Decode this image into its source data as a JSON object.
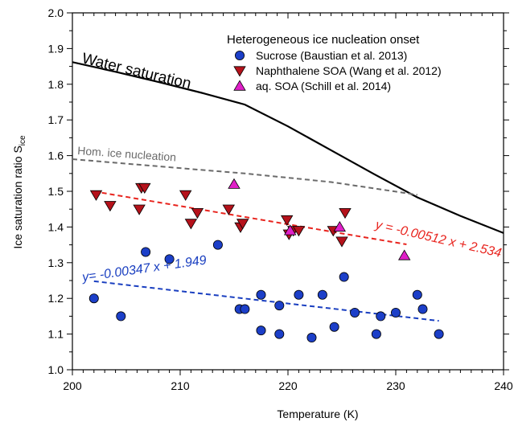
{
  "chart_data": {
    "type": "scatter",
    "title": "",
    "xlabel": "Temperature (K)",
    "ylabel": "Ice saturation ratio S",
    "ylabel_sub": "ice",
    "xlim": [
      200,
      240
    ],
    "ylim": [
      1.0,
      2.0
    ],
    "xticks": [
      "200",
      "210",
      "220",
      "230",
      "240"
    ],
    "yticks": [
      "1.0",
      "1.1",
      "1.2",
      "1.3",
      "1.4",
      "1.5",
      "1.6",
      "1.7",
      "1.8",
      "1.9",
      "2.0"
    ],
    "legend_title": "Heterogeneous ice nucleation onset",
    "legend_position": "top-right",
    "series": [
      {
        "name": "Sucrose (Baustian et al. 2013)",
        "marker": "circle",
        "color": "#1c3fc8",
        "points": [
          [
            202,
            1.2
          ],
          [
            204.5,
            1.15
          ],
          [
            206.8,
            1.33
          ],
          [
            209,
            1.31
          ],
          [
            213.5,
            1.35
          ],
          [
            215.5,
            1.17
          ],
          [
            216,
            1.17
          ],
          [
            217.5,
            1.21
          ],
          [
            217.5,
            1.11
          ],
          [
            219.2,
            1.18
          ],
          [
            219.2,
            1.1
          ],
          [
            221,
            1.21
          ],
          [
            222.2,
            1.09
          ],
          [
            223.2,
            1.21
          ],
          [
            224.3,
            1.12
          ],
          [
            225.2,
            1.26
          ],
          [
            226.2,
            1.16
          ],
          [
            228.2,
            1.1
          ],
          [
            228.6,
            1.15
          ],
          [
            230,
            1.16
          ],
          [
            232,
            1.21
          ],
          [
            232.5,
            1.17
          ],
          [
            234,
            1.1
          ]
        ]
      },
      {
        "name": "Naphthalene SOA (Wang et al. 2012)",
        "marker": "triangle-down",
        "color": "#b5121b",
        "points": [
          [
            202.2,
            1.49
          ],
          [
            203.5,
            1.46
          ],
          [
            206.2,
            1.45
          ],
          [
            206.4,
            1.51
          ],
          [
            206.7,
            1.51
          ],
          [
            210.5,
            1.49
          ],
          [
            211,
            1.41
          ],
          [
            211.6,
            1.44
          ],
          [
            214.5,
            1.45
          ],
          [
            215.6,
            1.4
          ],
          [
            215.8,
            1.41
          ],
          [
            219.9,
            1.42
          ],
          [
            220.1,
            1.38
          ],
          [
            220.5,
            1.39
          ],
          [
            221,
            1.39
          ],
          [
            224.2,
            1.39
          ],
          [
            225,
            1.36
          ],
          [
            225.3,
            1.44
          ]
        ]
      },
      {
        "name": "aq. SOA (Schill et al. 2014)",
        "marker": "triangle-up",
        "color": "#e020c8",
        "points": [
          [
            215,
            1.52
          ],
          [
            220.2,
            1.39
          ],
          [
            224.8,
            1.4
          ],
          [
            230.8,
            1.32
          ]
        ]
      }
    ],
    "lines": [
      {
        "name": "Water saturation",
        "color": "#000000",
        "dash": "solid",
        "points": [
          [
            200,
            1.862
          ],
          [
            204,
            1.835
          ],
          [
            208,
            1.806
          ],
          [
            212,
            1.776
          ],
          [
            216,
            1.743
          ],
          [
            220,
            1.682
          ],
          [
            224,
            1.615
          ],
          [
            228,
            1.548
          ],
          [
            232,
            1.483
          ],
          [
            236,
            1.431
          ],
          [
            240,
            1.383
          ]
        ]
      },
      {
        "name": "Hom. ice nucleation",
        "color": "#6a6a6a",
        "dash": "dashed",
        "points": [
          [
            200,
            1.59
          ],
          [
            204,
            1.58
          ],
          [
            208,
            1.57
          ],
          [
            212,
            1.56
          ],
          [
            216,
            1.55
          ],
          [
            220,
            1.538
          ],
          [
            224,
            1.526
          ],
          [
            228,
            1.508
          ],
          [
            232,
            1.49
          ]
        ]
      },
      {
        "name": "fit-naphthalene",
        "color": "#e8241e",
        "dash": "dashed",
        "points": [
          [
            202,
            1.5
          ]
        ]
      },
      {
        "name": "fit-sucrose",
        "color": "#1a3fc0",
        "dash": "dashed",
        "points": [
          [
            202,
            1.249
          ]
        ]
      }
    ],
    "fits": [
      {
        "color": "#e8241e",
        "slope": -0.00512,
        "intercept": 2.534,
        "x_range": [
          202,
          231
        ]
      },
      {
        "color": "#1a3fc0",
        "slope": -0.00347,
        "intercept": 1.949,
        "x_range": [
          202,
          234
        ]
      }
    ],
    "annotations": {
      "water_saturation": "Water saturation",
      "hom_ice": "Hom. ice nucleation",
      "red_fit": "y = -0.00512 x + 2.534",
      "blue_fit": "y= -0.00347 x + 1.949"
    }
  }
}
